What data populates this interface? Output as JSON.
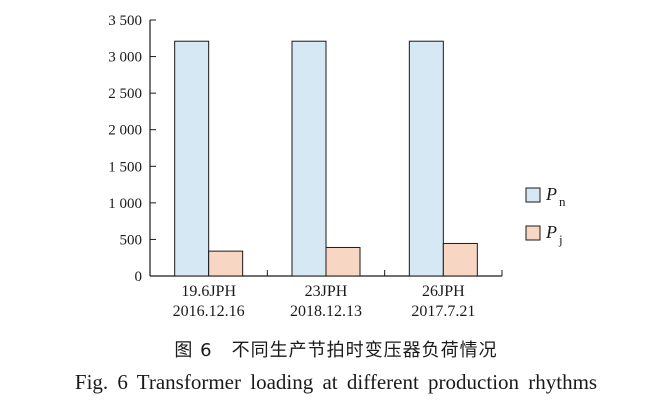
{
  "chart_data": {
    "type": "bar",
    "categories": [
      [
        "19.6JPH",
        "2016.12.16"
      ],
      [
        "23JPH",
        "2018.12.13"
      ],
      [
        "26JPH",
        "2017.7.21"
      ]
    ],
    "series": [
      {
        "name": "P_n",
        "symbol": "P",
        "subscript": "n",
        "values": [
          3210,
          3210,
          3210
        ],
        "color": "#d6e8f4"
      },
      {
        "name": "P_j",
        "symbol": "P",
        "subscript": "j",
        "values": [
          340,
          390,
          445
        ],
        "color": "#f8d6c4"
      }
    ],
    "yticks": [
      0,
      500,
      1000,
      1500,
      2000,
      2500,
      3000,
      3500
    ],
    "ytick_labels": [
      "0",
      "500",
      "1 000",
      "1 500",
      "2 000",
      "2 500",
      "3 000",
      "3 500"
    ],
    "ylim": [
      0,
      3500
    ],
    "grid": false,
    "legend_position": "right"
  },
  "caption": {
    "cn": "图 6　不同生产节拍时变压器负荷情况",
    "en": "Fig. 6  Transformer loading at different production rhythms"
  }
}
